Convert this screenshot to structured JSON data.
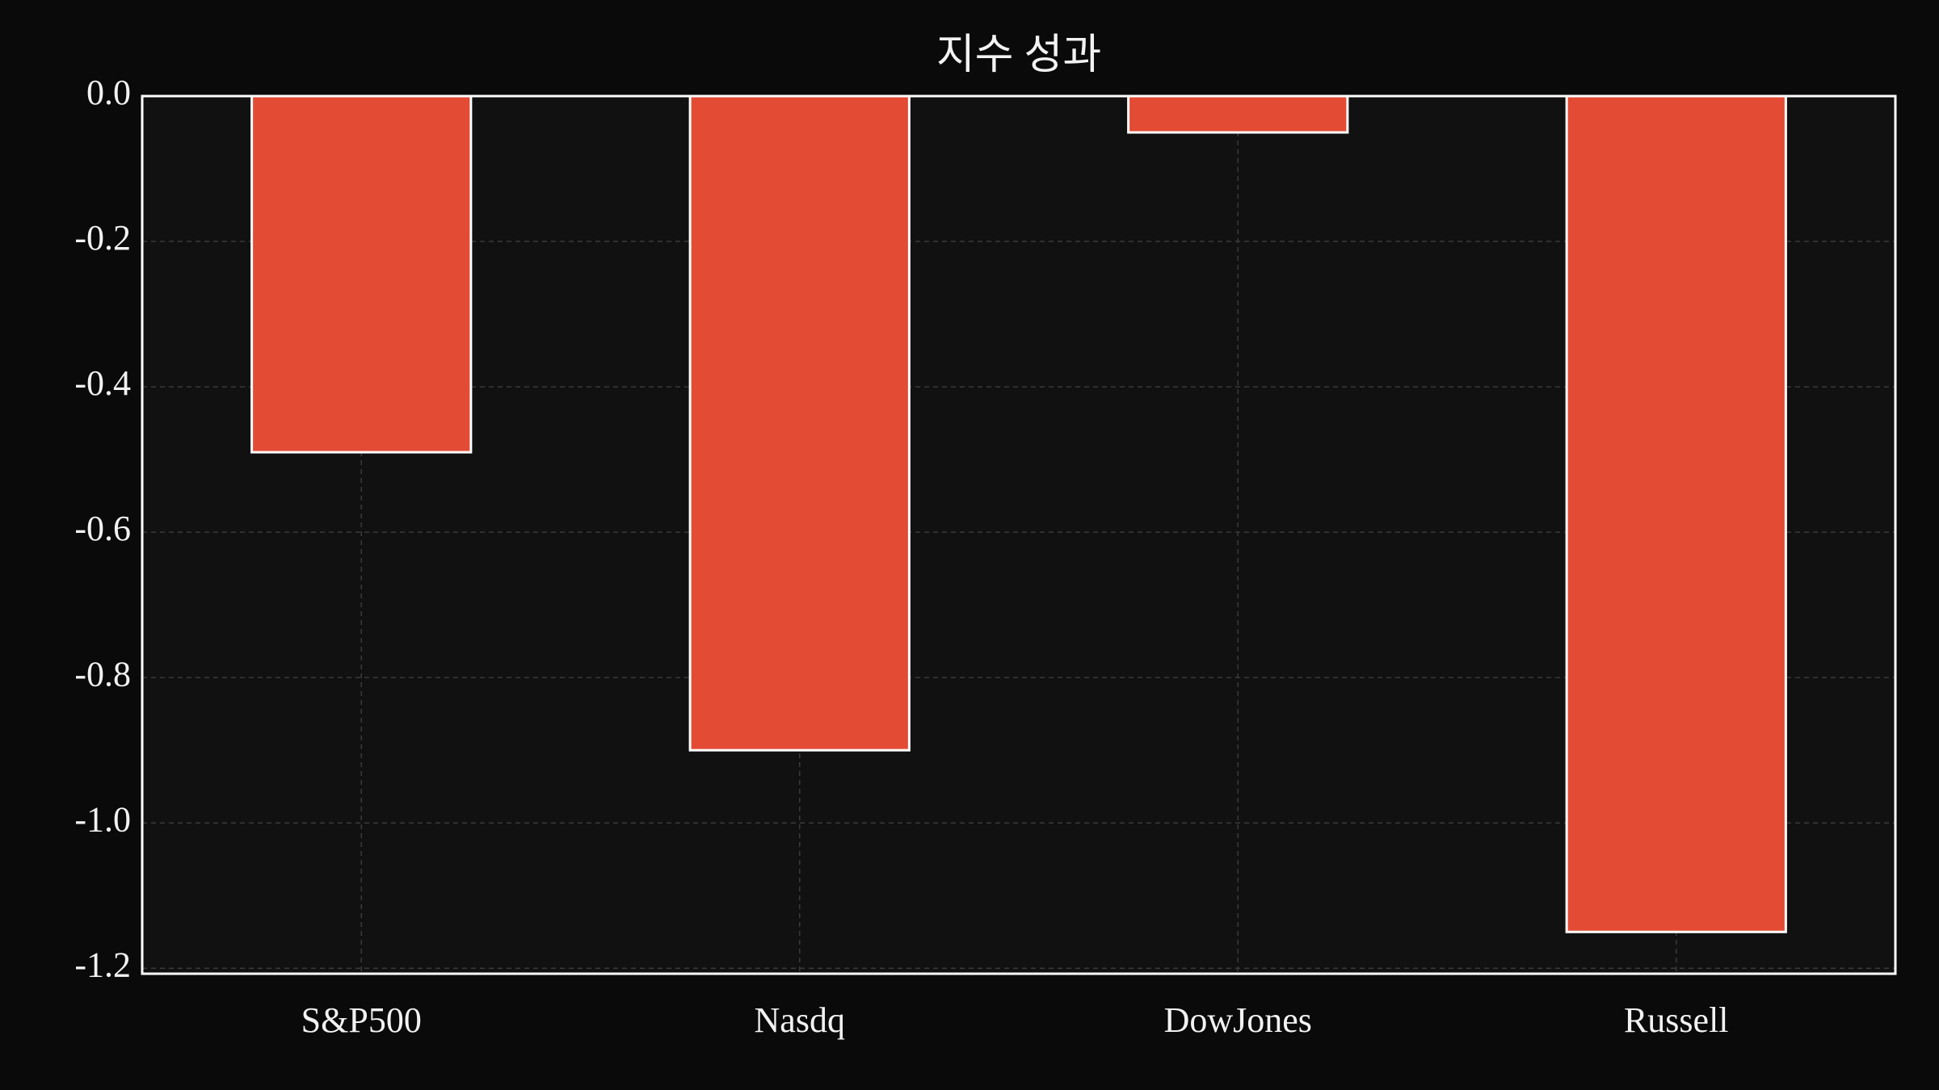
{
  "chart_data": {
    "type": "bar",
    "title": "지수 성과",
    "categories": [
      "S&P500",
      "Nasdq",
      "DowJones",
      "Russell"
    ],
    "values": [
      -0.49,
      -0.9,
      -0.05,
      -1.15
    ],
    "color": "#e34b35",
    "ylim": [
      -1.2075,
      0
    ],
    "yticks": [
      {
        "value": 0,
        "label": "0.0"
      },
      -0.2,
      -0.4,
      -0.6,
      -0.8,
      {
        "value": -1,
        "label": "-1.0"
      },
      -1.2
    ],
    "grid": true
  }
}
